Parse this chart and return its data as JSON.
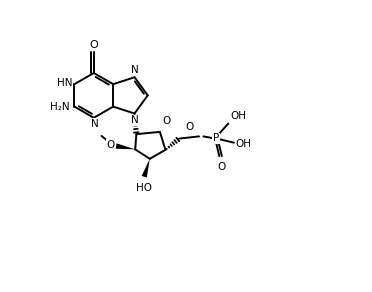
{
  "bg_color": "#ffffff",
  "line_color": "#000000",
  "lw": 1.4,
  "fs": 7.5,
  "xlim": [
    0,
    10
  ],
  "ylim": [
    0,
    8
  ],
  "figsize": [
    3.72,
    2.92
  ],
  "dpi": 100
}
